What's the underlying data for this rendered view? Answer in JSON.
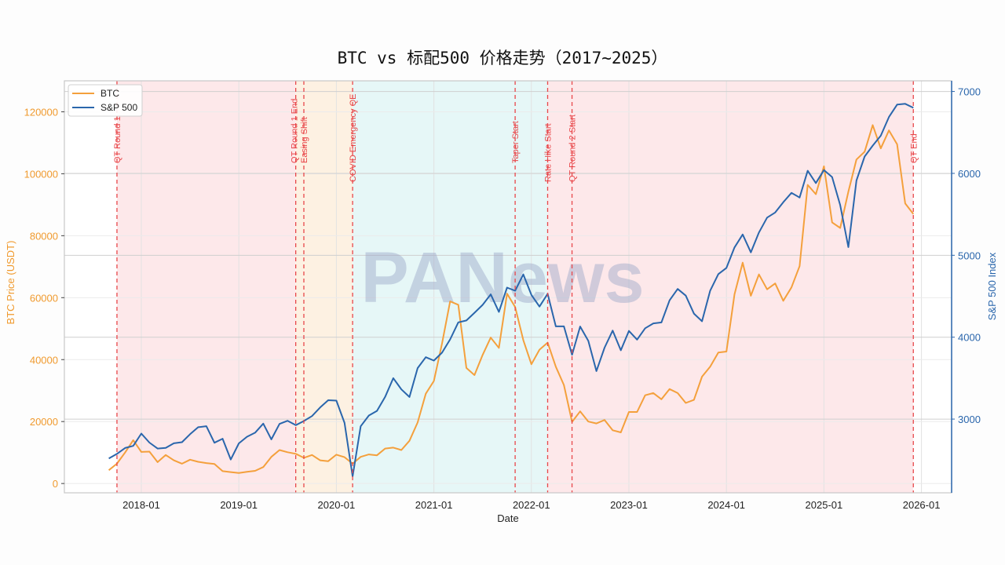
{
  "chart_data": {
    "type": "line",
    "title": "BTC vs 标配500 价格走势（2017~2025）",
    "xlabel": "Date",
    "ylabel_left": "BTC Price (USDT)",
    "ylabel_right": "S&P 500 Index",
    "x_ticks": [
      "2018-01",
      "2019-01",
      "2020-01",
      "2021-01",
      "2022-01",
      "2023-01",
      "2024-01",
      "2025-01",
      "2026-01"
    ],
    "y_left_ticks": [
      0,
      20000,
      40000,
      60000,
      80000,
      100000,
      120000
    ],
    "y_left_range": [
      -3000,
      130000
    ],
    "y_right_ticks": [
      3000,
      4000,
      5000,
      6000,
      7000
    ],
    "y_right_range": [
      2100,
      7130
    ],
    "grid": true,
    "legend": "top-left",
    "colors": {
      "BTC": "#f4a03c",
      "S&P 500": "#2a66ac",
      "event_line": "#e8474a",
      "left_axis": "#f09a2e",
      "right_axis": "#2a66ac"
    },
    "x": [
      "2017-09",
      "2017-10",
      "2017-11",
      "2017-12",
      "2018-01",
      "2018-02",
      "2018-03",
      "2018-04",
      "2018-05",
      "2018-06",
      "2018-07",
      "2018-08",
      "2018-09",
      "2018-10",
      "2018-11",
      "2018-12",
      "2019-01",
      "2019-02",
      "2019-03",
      "2019-04",
      "2019-05",
      "2019-06",
      "2019-07",
      "2019-08",
      "2019-09",
      "2019-10",
      "2019-11",
      "2019-12",
      "2020-01",
      "2020-02",
      "2020-03",
      "2020-04",
      "2020-05",
      "2020-06",
      "2020-07",
      "2020-08",
      "2020-09",
      "2020-10",
      "2020-11",
      "2020-12",
      "2021-01",
      "2021-02",
      "2021-03",
      "2021-04",
      "2021-05",
      "2021-06",
      "2021-07",
      "2021-08",
      "2021-09",
      "2021-10",
      "2021-11",
      "2021-12",
      "2022-01",
      "2022-02",
      "2022-03",
      "2022-04",
      "2022-05",
      "2022-06",
      "2022-07",
      "2022-08",
      "2022-09",
      "2022-10",
      "2022-11",
      "2022-12",
      "2023-01",
      "2023-02",
      "2023-03",
      "2023-04",
      "2023-05",
      "2023-06",
      "2023-07",
      "2023-08",
      "2023-09",
      "2023-10",
      "2023-11",
      "2023-12",
      "2024-01",
      "2024-02",
      "2024-03",
      "2024-04",
      "2024-05",
      "2024-06",
      "2024-07",
      "2024-08",
      "2024-09",
      "2024-10",
      "2024-11",
      "2024-12",
      "2025-01",
      "2025-02",
      "2025-03",
      "2025-04",
      "2025-05",
      "2025-06",
      "2025-07",
      "2025-08",
      "2025-09",
      "2025-10",
      "2025-11",
      "2025-12"
    ],
    "series": [
      {
        "name": "BTC",
        "axis": "left",
        "values": [
          4300,
          6400,
          10000,
          14000,
          10200,
          10300,
          6900,
          9200,
          7500,
          6400,
          7700,
          7000,
          6600,
          6300,
          4000,
          3700,
          3400,
          3800,
          4100,
          5300,
          8600,
          10800,
          10100,
          9600,
          8300,
          9200,
          7500,
          7200,
          9300,
          8500,
          6400,
          8600,
          9400,
          9100,
          11300,
          11600,
          10800,
          13800,
          19700,
          29000,
          33100,
          45200,
          58800,
          57700,
          37300,
          35000,
          41500,
          47100,
          43800,
          61300,
          57000,
          46300,
          38500,
          43200,
          45500,
          37700,
          31800,
          19900,
          23300,
          20000,
          19400,
          20500,
          17200,
          16500,
          23100,
          23100,
          28500,
          29200,
          27200,
          30500,
          29200,
          26000,
          27000,
          34500,
          37700,
          42300,
          42600,
          61100,
          71300,
          60600,
          67500,
          62700,
          64600,
          59000,
          63300,
          70200,
          96400,
          93400,
          102400,
          84300,
          82500,
          94200,
          104600,
          107100,
          115700,
          108200,
          114000,
          109500,
          90400,
          87000
        ]
      },
      {
        "name": "S&P 500",
        "axis": "right",
        "values": [
          2519,
          2575,
          2647,
          2673,
          2823,
          2713,
          2640,
          2648,
          2705,
          2718,
          2816,
          2901,
          2913,
          2711,
          2760,
          2506,
          2704,
          2784,
          2834,
          2945,
          2752,
          2941,
          2980,
          2926,
          2977,
          3037,
          3141,
          3231,
          3226,
          2954,
          2300,
          2912,
          3044,
          3100,
          3271,
          3500,
          3363,
          3270,
          3622,
          3756,
          3714,
          3811,
          3973,
          4181,
          4204,
          4298,
          4395,
          4523,
          4308,
          4605,
          4567,
          4766,
          4516,
          4374,
          4530,
          4132,
          4132,
          3785,
          4130,
          3955,
          3586,
          3872,
          4080,
          3840,
          4077,
          3970,
          4109,
          4169,
          4180,
          4450,
          4589,
          4508,
          4288,
          4194,
          4568,
          4770,
          4846,
          5096,
          5254,
          5036,
          5278,
          5460,
          5522,
          5648,
          5762,
          5705,
          6032,
          5882,
          6041,
          5955,
          5612,
          5100,
          5912,
          6205,
          6339,
          6460,
          6688,
          6840,
          6849,
          6800
        ]
      }
    ],
    "events": [
      {
        "date": "2017-10",
        "label": "QT Round 1"
      },
      {
        "date": "2019-08",
        "label": "QT Round 1 End"
      },
      {
        "date": "2019-09",
        "label": "Easing Shift"
      },
      {
        "date": "2020-03",
        "label": "COVID Emergency QE"
      },
      {
        "date": "2021-11",
        "label": "Taper Start"
      },
      {
        "date": "2022-03",
        "label": "Rate Hike Start"
      },
      {
        "date": "2022-06",
        "label": "QT Round 2 Start"
      },
      {
        "date": "2025-12",
        "label": "QT End"
      }
    ],
    "regions": [
      {
        "from": "2017-10",
        "to": "2019-08",
        "color": "#fde8ea"
      },
      {
        "from": "2019-08",
        "to": "2020-03",
        "color": "#fdf1e2"
      },
      {
        "from": "2020-03",
        "to": "2022-03",
        "color": "#e6f7f7"
      },
      {
        "from": "2022-03",
        "to": "2025-12",
        "color": "#fde8ea"
      }
    ]
  },
  "watermark": "PANews"
}
